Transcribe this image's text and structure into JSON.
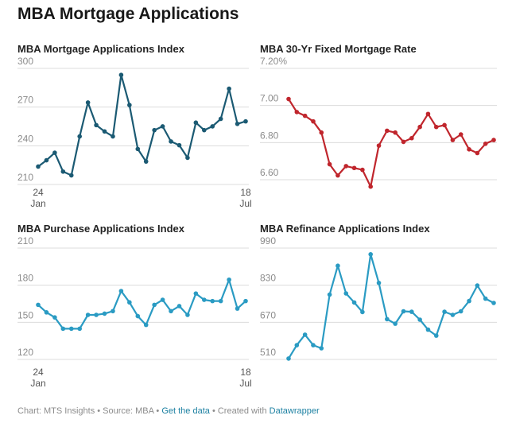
{
  "title": "MBA Mortgage Applications",
  "footer": {
    "chart_credit": "Chart: MTS Insights",
    "sep1": " • ",
    "source": "Source: MBA",
    "sep2": " • ",
    "get_data": "Get the data",
    "sep3": " • ",
    "created_with": "Created with ",
    "datawrapper": "Datawrapper"
  },
  "colors": {
    "index": "#1b5a73",
    "rate": "#c0262d",
    "purchase": "#2a9bc3",
    "refinance": "#2a9bc3",
    "grid": "#dcdcdc",
    "link": "#1d81a2"
  },
  "chart_data": [
    {
      "type": "line",
      "title": "MBA Mortgage Applications Index",
      "x_tick_labels": [
        [
          "24",
          "Jan"
        ],
        [
          "18",
          "Jul"
        ]
      ],
      "y_ticks": [
        "300",
        "270",
        "240",
        "210"
      ],
      "ylim": [
        205,
        300
      ],
      "values": [
        218,
        223,
        229,
        214,
        211,
        242,
        269,
        251,
        246,
        242,
        291,
        267,
        232,
        222,
        247,
        250,
        238,
        235,
        225,
        253,
        247,
        250,
        256,
        280,
        252,
        254
      ],
      "color": "#1b5a73"
    },
    {
      "type": "line",
      "title": "MBA 30-Yr Fixed Mortgage Rate",
      "x_tick_labels": [],
      "y_ticks": [
        "7.20%",
        "7.00",
        "6.80",
        "6.60"
      ],
      "ylim": [
        6.56,
        7.2
      ],
      "values": [
        7.01,
        6.94,
        6.92,
        6.89,
        6.83,
        6.66,
        6.6,
        6.65,
        6.64,
        6.63,
        6.54,
        6.76,
        6.84,
        6.83,
        6.78,
        6.8,
        6.86,
        6.93,
        6.86,
        6.87,
        6.79,
        6.82,
        6.74,
        6.72,
        6.77,
        6.79
      ],
      "color": "#c0262d"
    },
    {
      "type": "line",
      "title": "MBA Purchase Applications Index",
      "x_tick_labels": [
        [
          "24",
          "Jan"
        ],
        [
          "18",
          "Jul"
        ]
      ],
      "y_ticks": [
        "210",
        "180",
        "150",
        "120"
      ],
      "ylim": [
        115,
        210
      ],
      "values": [
        161,
        155,
        151,
        142,
        142,
        142,
        153,
        153,
        154,
        156,
        172,
        163,
        152,
        145,
        161,
        165,
        156,
        160,
        153,
        170,
        165,
        164,
        164,
        181,
        158,
        164
      ],
      "color": "#2a9bc3"
    },
    {
      "type": "line",
      "title": "MBA Refinance Applications Index",
      "x_tick_labels": [],
      "y_ticks": [
        "990",
        "830",
        "670",
        "510"
      ],
      "ylim": [
        490,
        990
      ],
      "values": [
        507,
        563,
        607,
        563,
        550,
        775,
        896,
        780,
        742,
        702,
        944,
        824,
        672,
        653,
        705,
        703,
        670,
        628,
        603,
        703,
        690,
        705,
        748,
        813,
        758,
        740
      ],
      "color": "#2a9bc3"
    }
  ]
}
